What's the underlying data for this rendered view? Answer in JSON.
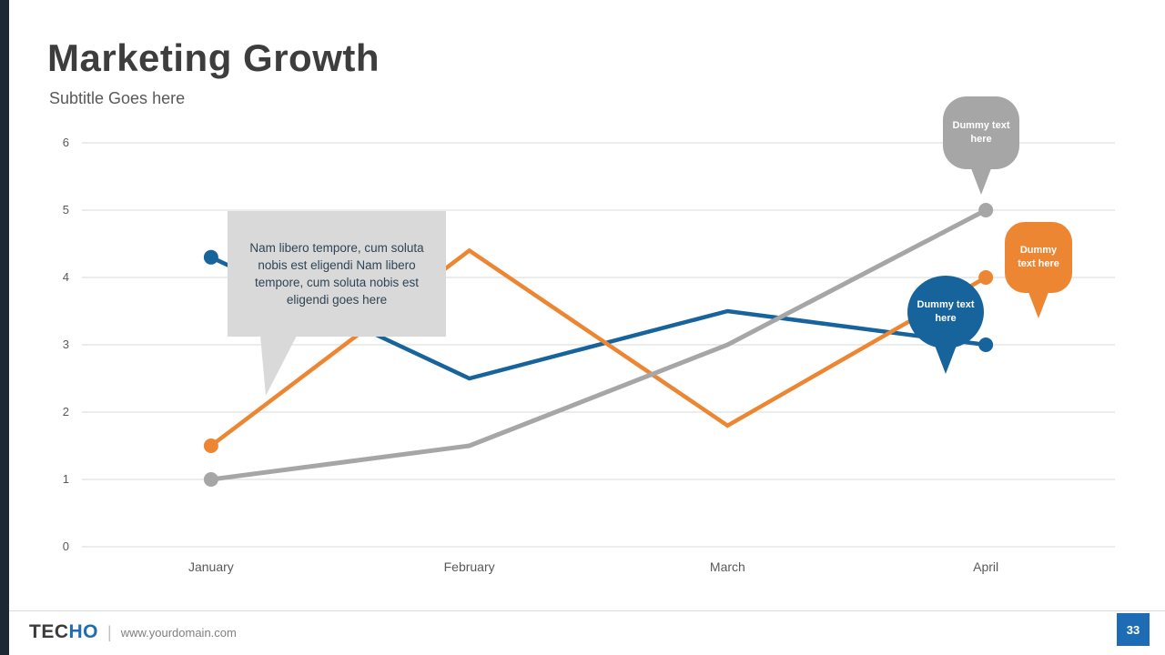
{
  "slide": {
    "title": "Marketing Growth",
    "subtitle": "Subtitle Goes here",
    "page_number": "33"
  },
  "footer": {
    "brand_prefix": "TEC",
    "brand_suffix": "HO",
    "separator": "|",
    "url": "www.yourdomain.com"
  },
  "annotation": {
    "text": "Nam libero tempore, cum soluta nobis est eligendi Nam libero tempore, cum soluta nobis est eligendi goes here"
  },
  "callouts": [
    {
      "id": "gray",
      "text": "Dummy text here",
      "color": "#a6a6a6"
    },
    {
      "id": "orange",
      "text": "Dummy text here",
      "color": "#ed8633"
    },
    {
      "id": "blue",
      "text": "Dummy text here",
      "color": "#17639b"
    }
  ],
  "colors": {
    "accent_blue": "#1e6db4",
    "sidebar_dark": "#1d2835",
    "gridline": "#d9d9d9",
    "text_dark": "#3d3d3d",
    "text_muted": "#595959"
  },
  "chart_data": {
    "type": "line",
    "title": "Marketing Growth",
    "categories": [
      "January",
      "February",
      "March",
      "April"
    ],
    "series": [
      {
        "name": "blue",
        "color": "#17639b",
        "width": 4.5,
        "values": [
          4.3,
          2.5,
          3.5,
          3.0
        ]
      },
      {
        "name": "orange",
        "color": "#ed8633",
        "width": 4.5,
        "values": [
          1.5,
          4.4,
          1.8,
          4.0
        ]
      },
      {
        "name": "gray",
        "color": "#a6a6a6",
        "width": 5,
        "values": [
          1.0,
          1.5,
          3.0,
          5.0
        ]
      }
    ],
    "xlabel": "",
    "ylabel": "",
    "ylim": [
      0,
      6
    ],
    "yticks": [
      0,
      1,
      2,
      3,
      4,
      5,
      6
    ],
    "grid": true,
    "legend": "none",
    "markers": "endpoints"
  }
}
